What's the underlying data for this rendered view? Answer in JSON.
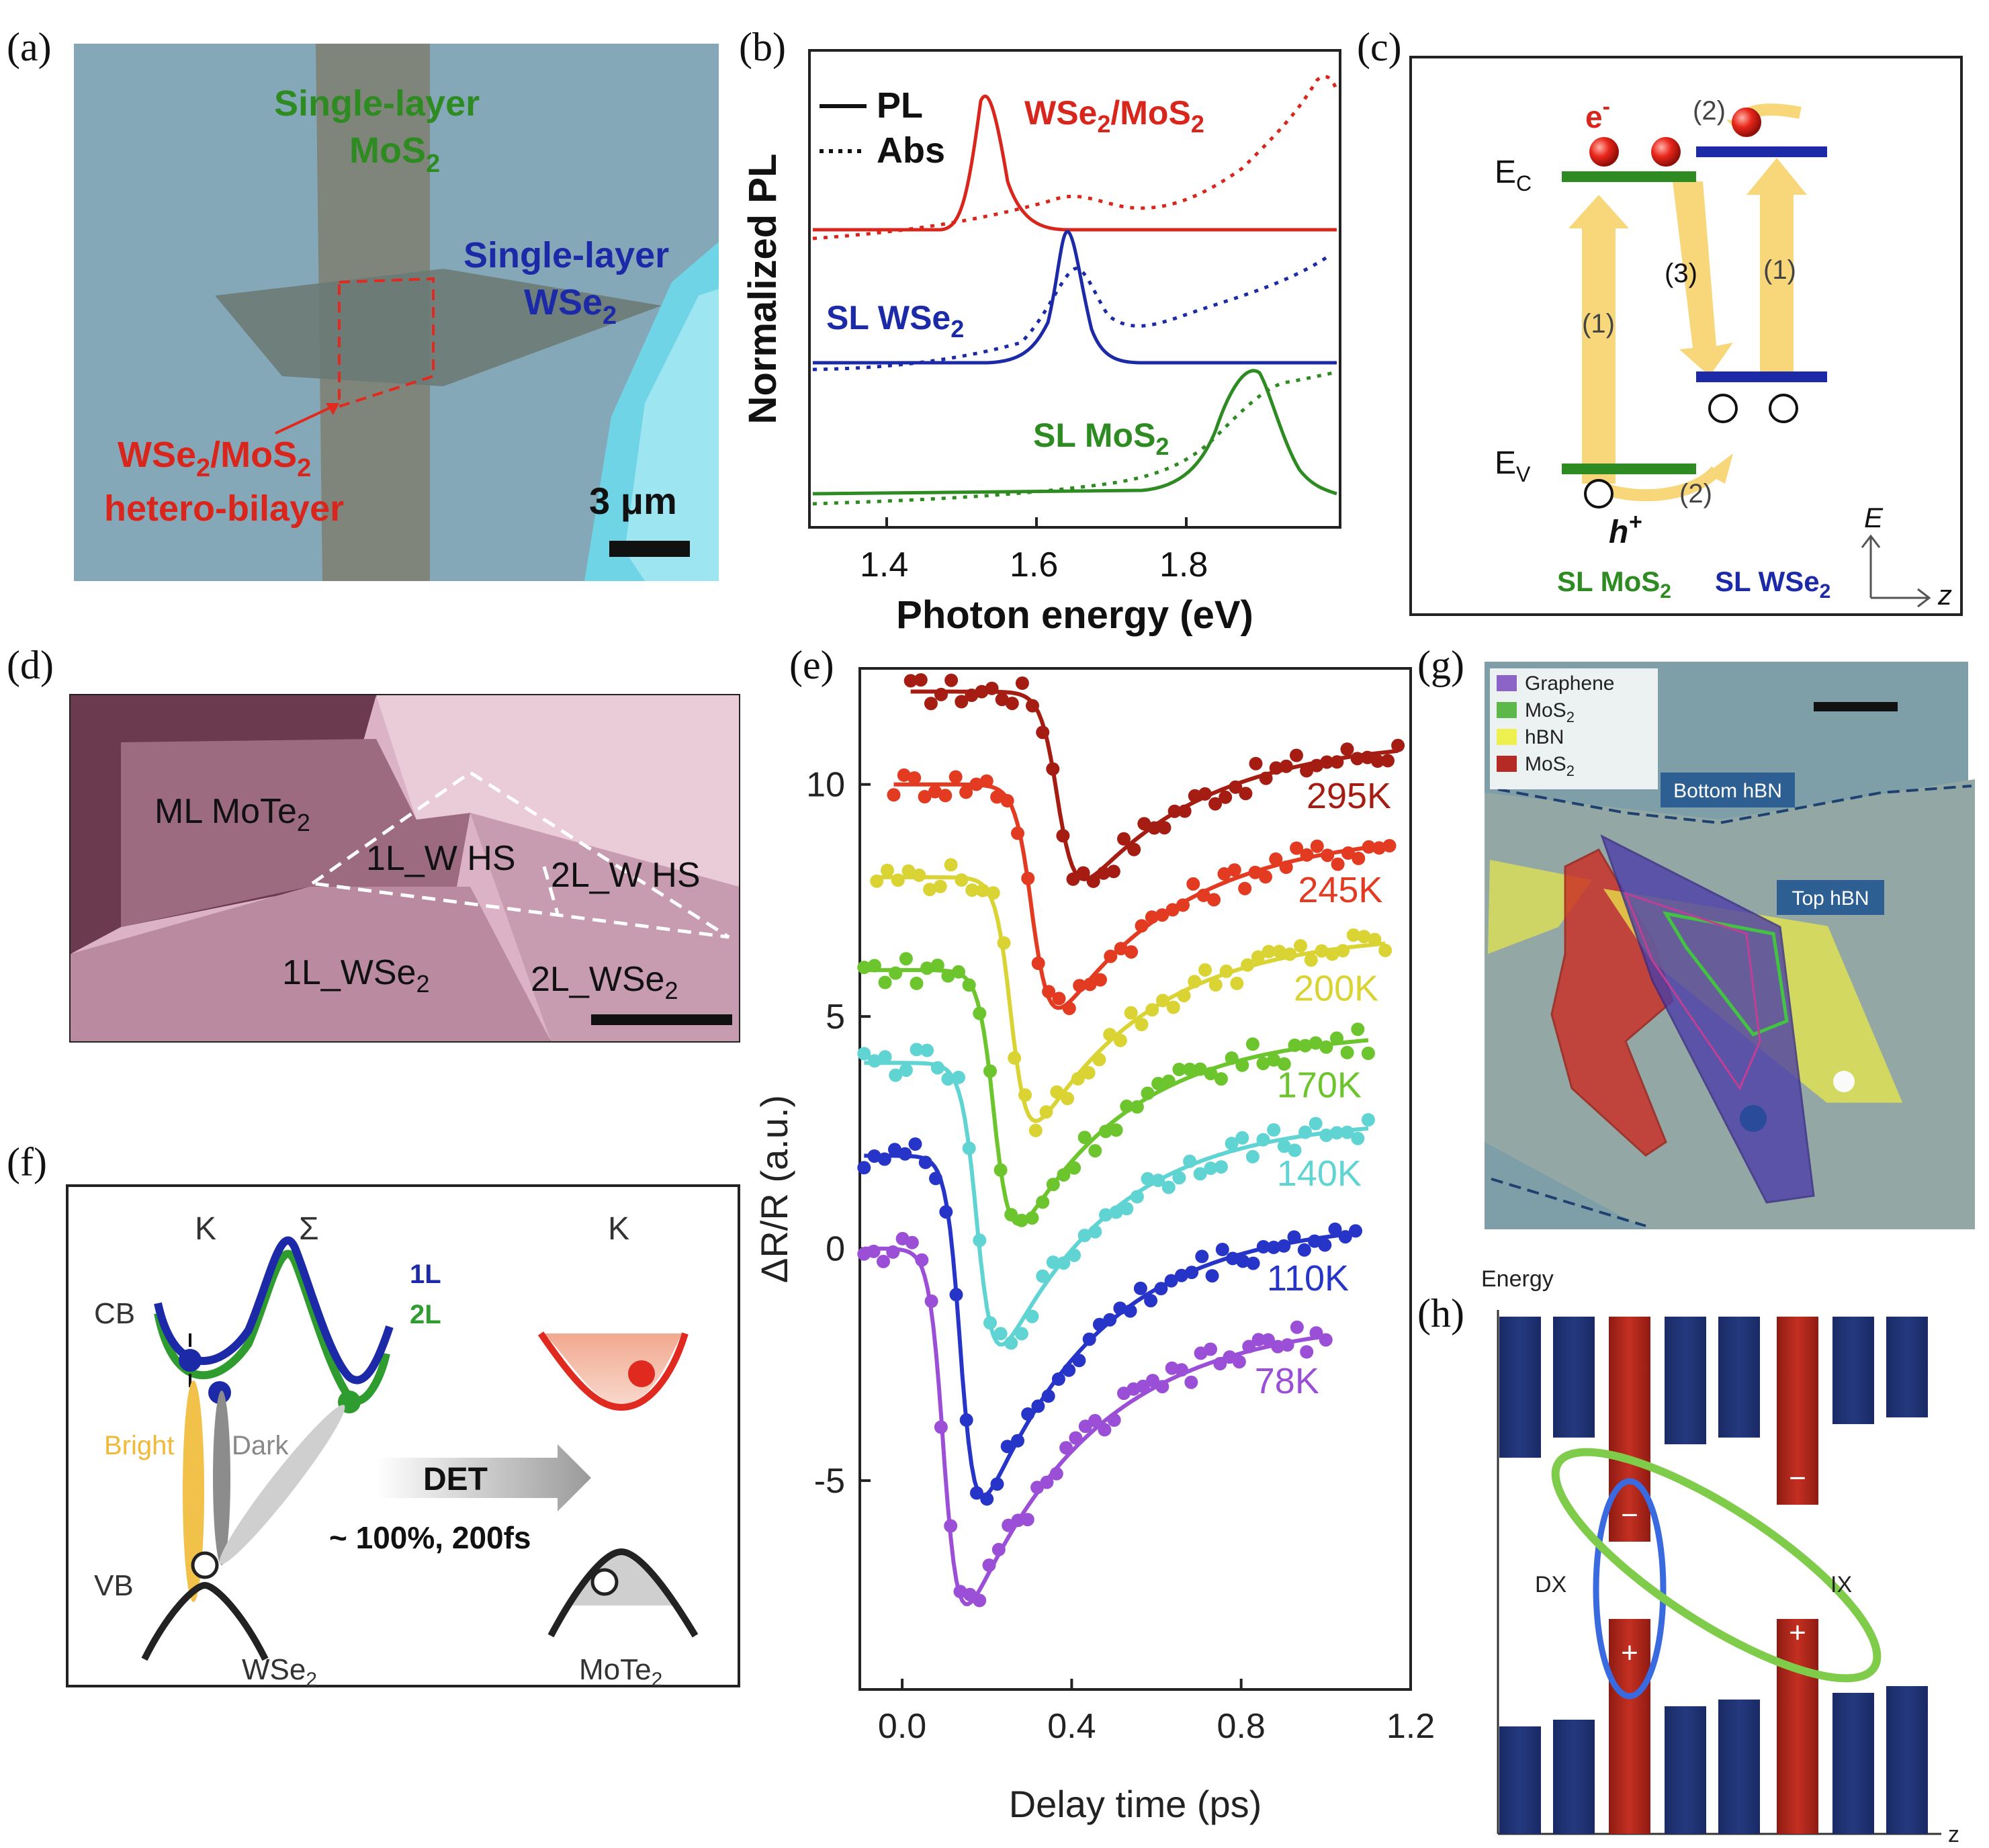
{
  "panel_labels": [
    "(a)",
    "(b)",
    "(c)",
    "(d)",
    "(e)",
    "(f)",
    "(g)",
    "(h)"
  ],
  "colors": {
    "green": "#2e8b22",
    "blue": "#1c2aa8",
    "red": "#d9261c",
    "arrow": "#f7d77a",
    "navy": "#1c2c6e",
    "darkred": "#b3261b"
  },
  "panel_a": {
    "label_mos2_line1": "Single-layer",
    "label_mos2_line2": "MoS",
    "label_wse2_line1": "Single-layer",
    "label_wse2_line2": "WSe",
    "hetero_line1_a": "WSe",
    "hetero_line1_b": "/MoS",
    "hetero_line2": "hetero-bilayer",
    "sub2": "2",
    "scale": "3 μm"
  },
  "panel_b": {
    "legend_pl": "PL",
    "legend_abs": "Abs",
    "ylabel": "Normalized PL",
    "xlabel": "Photon energy (eV)",
    "xticks": [
      "1.4",
      "1.6",
      "1.8"
    ],
    "label_top_a": "WSe",
    "label_top_b": "/MoS",
    "label_mid": "SL WSe",
    "label_bot": "SL MoS",
    "sub2": "2"
  },
  "panel_c": {
    "e_minus": "e",
    "minus": "-",
    "ec": "E",
    "ec_sub": "C",
    "ev": "E",
    "ev_sub": "V",
    "h_plus": "h",
    "plus": "+",
    "step1a": "(1)",
    "step1b": "(1)",
    "step2a": "(2)",
    "step2b": "(2)",
    "step3": "(3)",
    "mat_left": "SL MoS",
    "mat_right": "SL WSe",
    "sub2": "2",
    "axis_e": "E",
    "axis_z": "z"
  },
  "panel_d": {
    "ml_mote2": "ML MoTe",
    "hs1": "1L_W HS",
    "hs2": "2L_W HS",
    "wse2_1l": "1L_WSe",
    "wse2_2l": "2L_WSe",
    "sub2": "2"
  },
  "panel_e": {
    "xlabel": "Delay time (ps)",
    "ylabel": "ΔR/R (a.u.)"
  },
  "panel_f": {
    "k1": "K",
    "sigma": "Σ",
    "k2": "K",
    "cb": "CB",
    "vb": "VB",
    "l1": "1L",
    "l2": "2L",
    "bright": "Bright",
    "dark": "Dark",
    "det": "DET",
    "det_eff": "~ 100%, 200fs",
    "wse2": "WSe",
    "mote2": "MoTe",
    "sub2": "2"
  },
  "panel_g": {
    "legend": [
      "Graphene",
      "MoS",
      "hBN",
      "MoS"
    ],
    "legend_sub": [
      "",
      "2",
      "",
      "2"
    ],
    "bottom_hbn": "Bottom hBN",
    "top_hbn": "Top hBN"
  },
  "panel_h": {
    "energy": "Energy",
    "dx": "DX",
    "ix": "IX",
    "minus": "−",
    "plus": "+",
    "z": "z"
  },
  "chart_data": {
    "type": "line",
    "xlabel": "Delay time (ps)",
    "ylabel": "ΔR/R (a.u.)",
    "xlim": [
      -0.1,
      1.2
    ],
    "ylim": [
      -9.5,
      12.5
    ],
    "xticks": [
      0.0,
      0.4,
      0.8,
      1.2
    ],
    "yticks": [
      10,
      5,
      0,
      -5
    ],
    "xticklabels": [
      "0.0",
      "0.4",
      "0.8",
      "1.2"
    ],
    "yticklabels": [
      "10",
      "5",
      "0",
      "-5"
    ],
    "series": [
      {
        "name": "295K",
        "color": "#a51d12",
        "offset": 12,
        "depth": 5.0,
        "t0": 0.37,
        "rise": 0.06,
        "recovery": 4.0,
        "tau": 0.3,
        "xmin": 0.02,
        "xmax": 1.17
      },
      {
        "name": "245K",
        "color": "#e23b22",
        "offset": 10,
        "depth": 6.0,
        "t0": 0.31,
        "rise": 0.06,
        "recovery": 5.0,
        "tau": 0.3,
        "xmin": -0.02,
        "xmax": 1.15
      },
      {
        "name": "200K",
        "color": "#d9d434",
        "offset": 8,
        "depth": 6.5,
        "t0": 0.26,
        "rise": 0.055,
        "recovery": 5.3,
        "tau": 0.28,
        "xmin": -0.06,
        "xmax": 1.14
      },
      {
        "name": "170K",
        "color": "#6cc52c",
        "offset": 6,
        "depth": 6.8,
        "t0": 0.22,
        "rise": 0.055,
        "recovery": 5.5,
        "tau": 0.27,
        "xmin": -0.09,
        "xmax": 1.1
      },
      {
        "name": "140K",
        "color": "#5fd4d2",
        "offset": 4,
        "depth": 7.6,
        "t0": 0.18,
        "rise": 0.055,
        "recovery": 6.4,
        "tau": 0.27,
        "xmin": -0.09,
        "xmax": 1.1
      },
      {
        "name": "110K",
        "color": "#2634c8",
        "offset": 2,
        "depth": 9.0,
        "t0": 0.14,
        "rise": 0.05,
        "recovery": 7.6,
        "tau": 0.28,
        "xmin": -0.09,
        "xmax": 1.07
      },
      {
        "name": "78K",
        "color": "#9a4fd6",
        "offset": 0,
        "depth": 9.3,
        "t0": 0.1,
        "rise": 0.05,
        "recovery": 7.8,
        "tau": 0.3,
        "xmin": -0.09,
        "xmax": 1.0
      }
    ]
  }
}
